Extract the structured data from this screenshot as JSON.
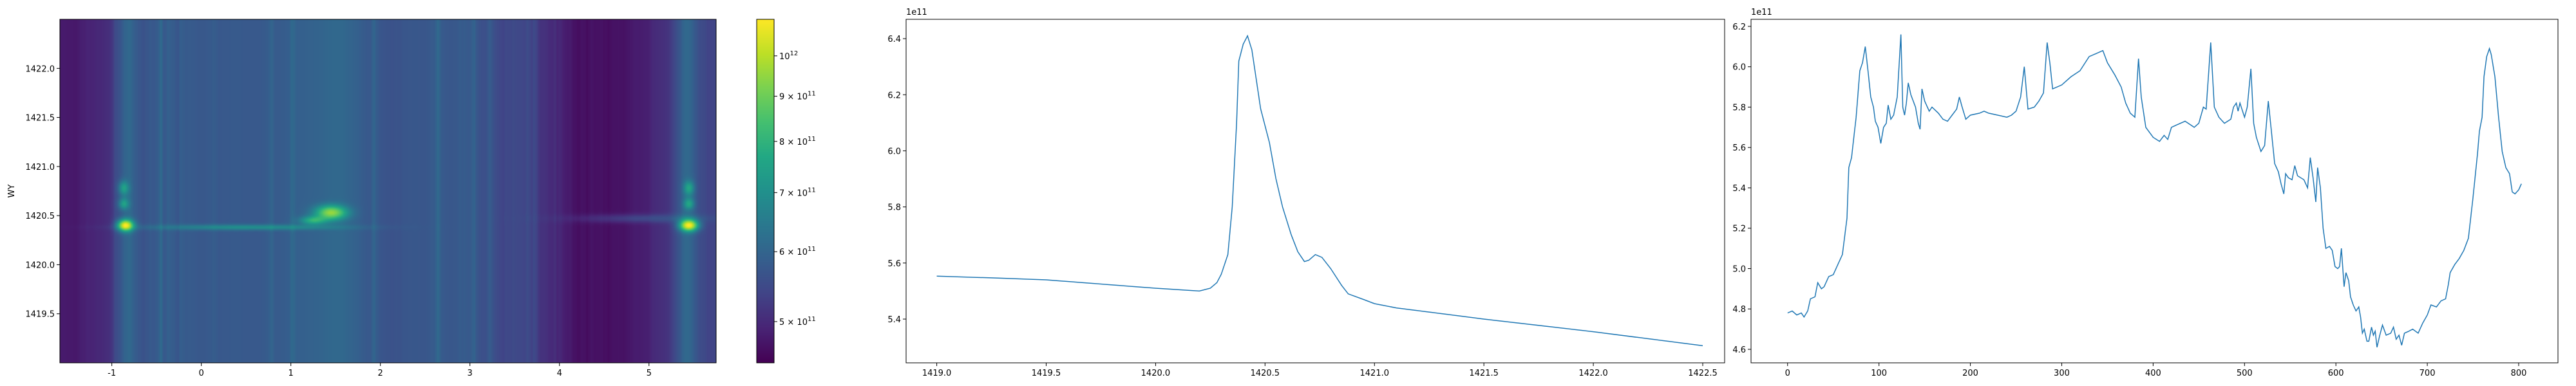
{
  "chart_data": [
    {
      "type": "heatmap",
      "xlim": [
        -1.58,
        5.75
      ],
      "ylim": [
        1419.0,
        1422.5
      ],
      "xticks": [
        "-1",
        "0",
        "1",
        "2",
        "3",
        "4",
        "5"
      ],
      "xtick_values": [
        -1,
        0,
        1,
        2,
        3,
        4,
        5
      ],
      "yticks": [
        "1419.5",
        "1420.0",
        "1420.5",
        "1421.0",
        "1421.5",
        "1422.0"
      ],
      "ytick_values": [
        1419.5,
        1420.0,
        1420.5,
        1421.0,
        1421.5,
        1422.0
      ],
      "xlabel": "",
      "ylabel": "WY",
      "colormap": "viridis",
      "color_scale": "log",
      "color_range": [
        449000000000.0,
        1100000000000.0
      ],
      "colorbar_ticks": [
        {
          "value": 500000000000.0,
          "mant": "5 × 10",
          "exp": "11"
        },
        {
          "value": 600000000000.0,
          "mant": "6 × 10",
          "exp": "11"
        },
        {
          "value": 700000000000.0,
          "mant": "7 × 10",
          "exp": "11"
        },
        {
          "value": 800000000000.0,
          "mant": "8 × 10",
          "exp": "11"
        },
        {
          "value": 900000000000.0,
          "mant": "9 × 10",
          "exp": "11"
        },
        {
          "value": 1000000000000.0,
          "mant": "10",
          "exp": "12"
        }
      ],
      "background_column_profile": "chart_data.2",
      "hotspots": [
        {
          "x": -0.85,
          "y": 1420.4,
          "amp": 500000000000.0,
          "sx": 0.06,
          "sy": 0.04
        },
        {
          "x": 5.45,
          "y": 1420.4,
          "amp": 500000000000.0,
          "sx": 0.07,
          "sy": 0.04
        },
        {
          "x": 1.45,
          "y": 1420.53,
          "amp": 350000000000.0,
          "sx": 0.12,
          "sy": 0.05
        },
        {
          "x": 1.25,
          "y": 1420.45,
          "amp": 200000000000.0,
          "sx": 0.1,
          "sy": 0.03
        },
        {
          "x": -0.87,
          "y": 1420.62,
          "amp": 160000000000.0,
          "sx": 0.04,
          "sy": 0.04
        },
        {
          "x": -0.87,
          "y": 1420.78,
          "amp": 160000000000.0,
          "sx": 0.04,
          "sy": 0.05
        },
        {
          "x": 5.45,
          "y": 1420.62,
          "amp": 160000000000.0,
          "sx": 0.04,
          "sy": 0.04
        },
        {
          "x": 5.45,
          "y": 1420.78,
          "amp": 160000000000.0,
          "sx": 0.04,
          "sy": 0.05
        },
        {
          "x": 0.5,
          "y": 1420.38,
          "amp": 120000000000.0,
          "sx": 0.7,
          "sy": 0.02
        },
        {
          "x": 4.9,
          "y": 1420.47,
          "amp": 60000000000.0,
          "sx": 0.5,
          "sy": 0.03
        }
      ]
    },
    {
      "type": "line",
      "xlim": [
        1418.86,
        1422.6
      ],
      "ylim": [
        5.244,
        6.469
      ],
      "y_offset_label": "1e11",
      "xticks": [
        "1419.0",
        "1419.5",
        "1420.0",
        "1420.5",
        "1421.0",
        "1421.5",
        "1422.0",
        "1422.5"
      ],
      "xtick_values": [
        1419.0,
        1419.5,
        1420.0,
        1420.5,
        1421.0,
        1421.5,
        1422.0,
        1422.5
      ],
      "yticks": [
        "5.4",
        "5.6",
        "5.8",
        "6.0",
        "6.2",
        "6.4"
      ],
      "ytick_values": [
        5.4,
        5.6,
        5.8,
        6.0,
        6.2,
        6.4
      ],
      "color": "#1f77b4",
      "x": [
        1419.0,
        1419.25,
        1419.5,
        1420.0,
        1420.2,
        1420.25,
        1420.28,
        1420.3,
        1420.33,
        1420.35,
        1420.37,
        1420.38,
        1420.4,
        1420.42,
        1420.44,
        1420.48,
        1420.52,
        1420.55,
        1420.58,
        1420.62,
        1420.65,
        1420.68,
        1420.7,
        1420.73,
        1420.76,
        1420.8,
        1420.85,
        1420.88,
        1420.95,
        1421.0,
        1421.1,
        1421.3,
        1421.5,
        1422.0,
        1422.5
      ],
      "y": [
        5.553,
        5.547,
        5.54,
        5.51,
        5.5,
        5.51,
        5.53,
        5.56,
        5.63,
        5.8,
        6.1,
        6.32,
        6.38,
        6.41,
        6.36,
        6.15,
        6.03,
        5.9,
        5.8,
        5.7,
        5.64,
        5.605,
        5.61,
        5.63,
        5.62,
        5.58,
        5.52,
        5.49,
        5.47,
        5.455,
        5.44,
        5.42,
        5.4,
        5.355,
        5.305
      ]
    },
    {
      "type": "line",
      "xlim": [
        -40,
        843
      ],
      "ylim": [
        4.533,
        6.235
      ],
      "y_offset_label": "1e11",
      "xticks": [
        "0",
        "100",
        "200",
        "300",
        "400",
        "500",
        "600",
        "700",
        "800"
      ],
      "xtick_values": [
        0,
        100,
        200,
        300,
        400,
        500,
        600,
        700,
        800
      ],
      "yticks": [
        "4.6",
        "4.8",
        "5.0",
        "5.2",
        "5.4",
        "5.6",
        "5.8",
        "6.0",
        "6.2"
      ],
      "ytick_values": [
        4.6,
        4.8,
        5.0,
        5.2,
        5.4,
        5.6,
        5.8,
        6.0,
        6.2
      ],
      "color": "#1f77b4",
      "x": [
        0,
        5,
        10,
        15,
        18,
        22,
        25,
        30,
        33,
        37,
        40,
        45,
        50,
        55,
        60,
        65,
        67,
        70,
        72,
        75,
        79,
        82,
        85,
        88,
        91,
        94,
        96,
        99,
        102,
        105,
        108,
        110,
        113,
        116,
        120,
        124,
        126,
        128,
        130,
        132,
        135,
        140,
        143,
        145,
        147,
        150,
        155,
        158,
        165,
        170,
        175,
        180,
        185,
        188,
        191,
        195,
        200,
        210,
        215,
        220,
        230,
        240,
        245,
        250,
        255,
        259,
        263,
        270,
        275,
        280,
        284,
        287,
        290,
        300,
        310,
        320,
        330,
        340,
        345,
        350,
        358,
        365,
        370,
        375,
        380,
        384,
        387,
        392,
        400,
        407,
        412,
        416,
        420,
        425,
        435,
        445,
        450,
        455,
        458,
        463,
        467,
        472,
        478,
        485,
        488,
        491,
        493,
        495,
        500,
        503,
        507,
        510,
        513,
        518,
        522,
        526,
        529,
        533,
        537,
        540,
        543,
        545,
        548,
        552,
        555,
        558,
        565,
        569,
        572,
        575,
        578,
        580,
        583,
        586,
        589,
        593,
        596,
        599,
        602,
        604,
        606,
        609,
        611,
        614,
        616,
        619,
        622,
        625,
        627,
        629,
        631,
        634,
        636,
        639,
        641,
        643,
        645,
        648,
        651,
        655,
        660,
        663,
        666,
        669,
        672,
        675,
        680,
        684,
        690,
        695,
        700,
        704,
        710,
        715,
        720,
        723,
        725,
        730,
        735,
        740,
        745,
        750,
        755,
        757,
        760,
        762,
        765,
        768,
        770,
        774,
        778,
        782,
        786,
        790,
        793,
        796,
        800,
        803
      ],
      "y": [
        4.78,
        4.79,
        4.77,
        4.78,
        4.76,
        4.79,
        4.85,
        4.86,
        4.93,
        4.9,
        4.91,
        4.96,
        4.97,
        5.02,
        5.07,
        5.25,
        5.5,
        5.55,
        5.63,
        5.75,
        5.98,
        6.02,
        6.1,
        5.98,
        5.85,
        5.8,
        5.73,
        5.7,
        5.62,
        5.7,
        5.72,
        5.81,
        5.74,
        5.76,
        5.85,
        6.16,
        5.8,
        5.76,
        5.82,
        5.92,
        5.86,
        5.8,
        5.72,
        5.69,
        5.89,
        5.83,
        5.78,
        5.8,
        5.77,
        5.74,
        5.73,
        5.76,
        5.79,
        5.85,
        5.8,
        5.74,
        5.76,
        5.77,
        5.78,
        5.77,
        5.76,
        5.75,
        5.76,
        5.78,
        5.85,
        6.0,
        5.79,
        5.8,
        5.83,
        5.87,
        6.12,
        6.02,
        5.89,
        5.91,
        5.95,
        5.98,
        6.05,
        6.07,
        6.08,
        6.02,
        5.96,
        5.9,
        5.82,
        5.77,
        5.75,
        6.04,
        5.85,
        5.7,
        5.65,
        5.63,
        5.66,
        5.64,
        5.7,
        5.71,
        5.73,
        5.7,
        5.72,
        5.8,
        5.79,
        6.12,
        5.8,
        5.75,
        5.72,
        5.74,
        5.8,
        5.82,
        5.78,
        5.82,
        5.75,
        5.8,
        5.99,
        5.72,
        5.65,
        5.58,
        5.61,
        5.83,
        5.7,
        5.52,
        5.48,
        5.42,
        5.37,
        5.47,
        5.45,
        5.44,
        5.51,
        5.46,
        5.44,
        5.4,
        5.55,
        5.45,
        5.33,
        5.5,
        5.4,
        5.2,
        5.1,
        5.11,
        5.09,
        5.01,
        5.0,
        5.01,
        5.1,
        4.91,
        4.98,
        4.94,
        4.86,
        4.82,
        4.79,
        4.81,
        4.76,
        4.68,
        4.7,
        4.64,
        4.64,
        4.71,
        4.67,
        4.69,
        4.61,
        4.67,
        4.72,
        4.67,
        4.68,
        4.71,
        4.65,
        4.67,
        4.62,
        4.68,
        4.69,
        4.7,
        4.68,
        4.73,
        4.77,
        4.82,
        4.81,
        4.84,
        4.85,
        4.92,
        4.98,
        5.02,
        5.05,
        5.09,
        5.15,
        5.35,
        5.57,
        5.68,
        5.75,
        5.95,
        6.05,
        6.09,
        6.06,
        5.95,
        5.75,
        5.58,
        5.5,
        5.47,
        5.38,
        5.37,
        5.39,
        5.42
      ]
    }
  ]
}
